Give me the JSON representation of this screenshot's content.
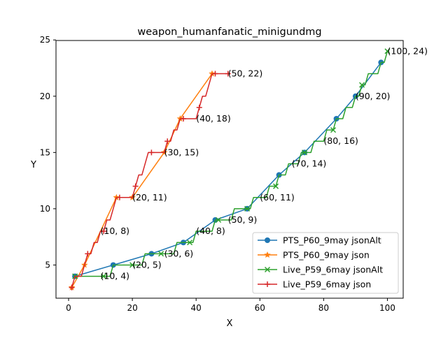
{
  "chart_data": {
    "type": "line",
    "title": "weapon_humanfanatic_minigundmg",
    "xlabel": "X",
    "ylabel": "Y",
    "xlim": [
      -3.95,
      104.95
    ],
    "ylim": [
      2.05,
      24.95
    ],
    "xticks": [
      0,
      20,
      40,
      60,
      80,
      100
    ],
    "yticks": [
      5,
      10,
      15,
      20,
      25
    ],
    "grid": false,
    "legend_position": "lower-right",
    "series": [
      {
        "name": "PTS_P60_9may jsonAlt",
        "color": "#1f77b4",
        "marker": "circle",
        "points": [
          [
            2,
            4
          ],
          [
            14,
            5
          ],
          [
            26,
            6
          ],
          [
            36,
            7
          ],
          [
            46,
            9
          ],
          [
            56,
            10
          ],
          [
            66,
            13
          ],
          [
            74,
            15
          ],
          [
            84,
            18
          ],
          [
            90,
            20
          ],
          [
            98,
            23
          ]
        ]
      },
      {
        "name": "PTS_P60_9may json",
        "color": "#ff7f0e",
        "marker": "star",
        "points": [
          [
            1,
            3
          ],
          [
            5,
            5
          ],
          [
            15,
            11
          ],
          [
            20,
            11
          ],
          [
            30,
            15
          ],
          [
            35,
            18
          ],
          [
            45,
            22
          ]
        ]
      },
      {
        "name": "Live_P59_6may jsonAlt",
        "color": "#2ca02c",
        "marker": "x",
        "points": [
          [
            2,
            4
          ],
          [
            3,
            4
          ],
          [
            4,
            4
          ],
          [
            5,
            4
          ],
          [
            6,
            4
          ],
          [
            7,
            4
          ],
          [
            8,
            4
          ],
          [
            9,
            4
          ],
          [
            10,
            4
          ],
          [
            11,
            4
          ],
          [
            12,
            4
          ],
          [
            13,
            4
          ],
          [
            14,
            5
          ],
          [
            15,
            5
          ],
          [
            16,
            5
          ],
          [
            17,
            5
          ],
          [
            18,
            5
          ],
          [
            19,
            5
          ],
          [
            20,
            5
          ],
          [
            21,
            5
          ],
          [
            22,
            5
          ],
          [
            23,
            5
          ],
          [
            24,
            6
          ],
          [
            25,
            6
          ],
          [
            26,
            6
          ],
          [
            27,
            6
          ],
          [
            28,
            6
          ],
          [
            29,
            6
          ],
          [
            30,
            6
          ],
          [
            31,
            6
          ],
          [
            32,
            6
          ],
          [
            33,
            6
          ],
          [
            34,
            7
          ],
          [
            35,
            7
          ],
          [
            36,
            7
          ],
          [
            37,
            7
          ],
          [
            38,
            7
          ],
          [
            39,
            7
          ],
          [
            40,
            8
          ],
          [
            41,
            8
          ],
          [
            42,
            8
          ],
          [
            43,
            8
          ],
          [
            44,
            8
          ],
          [
            45,
            8
          ],
          [
            46,
            9
          ],
          [
            47,
            9
          ],
          [
            48,
            9
          ],
          [
            49,
            9
          ],
          [
            50,
            9
          ],
          [
            51,
            9
          ],
          [
            52,
            10
          ],
          [
            53,
            10
          ],
          [
            54,
            10
          ],
          [
            55,
            10
          ],
          [
            56,
            10
          ],
          [
            57,
            10
          ],
          [
            58,
            11
          ],
          [
            59,
            11
          ],
          [
            60,
            11
          ],
          [
            61,
            11
          ],
          [
            62,
            11
          ],
          [
            63,
            12
          ],
          [
            64,
            12
          ],
          [
            65,
            12
          ],
          [
            66,
            13
          ],
          [
            67,
            13
          ],
          [
            68,
            13
          ],
          [
            69,
            14
          ],
          [
            70,
            14
          ],
          [
            71,
            14
          ],
          [
            72,
            14
          ],
          [
            73,
            15
          ],
          [
            74,
            15
          ],
          [
            75,
            15
          ],
          [
            76,
            15
          ],
          [
            77,
            16
          ],
          [
            78,
            16
          ],
          [
            79,
            16
          ],
          [
            80,
            16
          ],
          [
            81,
            17
          ],
          [
            82,
            17
          ],
          [
            83,
            17
          ],
          [
            84,
            18
          ],
          [
            85,
            18
          ],
          [
            86,
            18
          ],
          [
            87,
            19
          ],
          [
            88,
            19
          ],
          [
            89,
            19
          ],
          [
            90,
            20
          ],
          [
            91,
            20
          ],
          [
            92,
            21
          ],
          [
            93,
            21
          ],
          [
            94,
            22
          ],
          [
            95,
            22
          ],
          [
            96,
            22
          ],
          [
            97,
            22
          ],
          [
            98,
            23
          ],
          [
            99,
            23
          ],
          [
            100,
            24
          ]
        ]
      },
      {
        "name": "Live_P59_6may json",
        "color": "#d62728",
        "marker": "plus",
        "points": [
          [
            1,
            3
          ],
          [
            2,
            4
          ],
          [
            3,
            4
          ],
          [
            4,
            4
          ],
          [
            5,
            5
          ],
          [
            6,
            6
          ],
          [
            7,
            6
          ],
          [
            8,
            7
          ],
          [
            9,
            7
          ],
          [
            10,
            8
          ],
          [
            11,
            8
          ],
          [
            12,
            9
          ],
          [
            13,
            9
          ],
          [
            14,
            10
          ],
          [
            15,
            11
          ],
          [
            16,
            11
          ],
          [
            17,
            11
          ],
          [
            18,
            11
          ],
          [
            19,
            11
          ],
          [
            20,
            11
          ],
          [
            21,
            12
          ],
          [
            22,
            13
          ],
          [
            23,
            13
          ],
          [
            24,
            14
          ],
          [
            25,
            15
          ],
          [
            26,
            15
          ],
          [
            27,
            15
          ],
          [
            28,
            15
          ],
          [
            29,
            15
          ],
          [
            30,
            15
          ],
          [
            31,
            16
          ],
          [
            32,
            16
          ],
          [
            33,
            17
          ],
          [
            34,
            17
          ],
          [
            35,
            18
          ],
          [
            36,
            18
          ],
          [
            37,
            18
          ],
          [
            38,
            18
          ],
          [
            39,
            18
          ],
          [
            40,
            18
          ],
          [
            41,
            19
          ],
          [
            42,
            20
          ],
          [
            43,
            20
          ],
          [
            44,
            21
          ],
          [
            45,
            22
          ],
          [
            46,
            22
          ],
          [
            47,
            22
          ],
          [
            48,
            22
          ],
          [
            49,
            22
          ],
          [
            50,
            22
          ]
        ]
      }
    ],
    "annotations": [
      {
        "text": "(10, 4)",
        "x": 10,
        "y": 4
      },
      {
        "text": "(10, 8)",
        "x": 10,
        "y": 8
      },
      {
        "text": "(20, 5)",
        "x": 20,
        "y": 5
      },
      {
        "text": "(20, 11)",
        "x": 20,
        "y": 11
      },
      {
        "text": "(30, 6)",
        "x": 30,
        "y": 6
      },
      {
        "text": "(30, 15)",
        "x": 30,
        "y": 15
      },
      {
        "text": "(40, 8)",
        "x": 40,
        "y": 8
      },
      {
        "text": "(40, 18)",
        "x": 40,
        "y": 18
      },
      {
        "text": "(50, 9)",
        "x": 50,
        "y": 9
      },
      {
        "text": "(50, 22)",
        "x": 50,
        "y": 22
      },
      {
        "text": "(60, 11)",
        "x": 60,
        "y": 11
      },
      {
        "text": "(70, 14)",
        "x": 70,
        "y": 14
      },
      {
        "text": "(80, 16)",
        "x": 80,
        "y": 16
      },
      {
        "text": "(90, 20)",
        "x": 90,
        "y": 20
      },
      {
        "text": "(100, 24)",
        "x": 100,
        "y": 24
      }
    ]
  }
}
